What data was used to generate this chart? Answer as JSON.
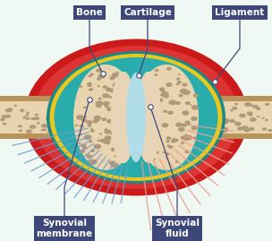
{
  "figsize": [
    3.04,
    2.69
  ],
  "dpi": 100,
  "bg_color": "#ffffff",
  "label_bg": "#3d4878",
  "label_fg": "#ffffff",
  "labels": {
    "bone": "Bone",
    "cartilage": "Cartilage",
    "ligament": "Ligament",
    "synovial_membrane": "Synovial\nmembrane",
    "synovial_fluid": "Synovial\nfluid"
  },
  "colors": {
    "bg": "#f0f8f4",
    "red_outer": "#cc1a1a",
    "red_mid": "#dd3333",
    "tan_bone_outer": "#b8935a",
    "tan_bone_inner": "#e8d5b0",
    "bone_marrow_dot": "#b0987a",
    "yellow_capsule": "#e8c820",
    "teal_outer": "#1a8888",
    "teal_inner": "#2aacac",
    "cartilage": "#e8d5b8",
    "light_blue": "#b0dce8",
    "blue_membrane": "#7799cc",
    "pink_ligament": "#e8a090",
    "line_color": "#3d4878"
  }
}
